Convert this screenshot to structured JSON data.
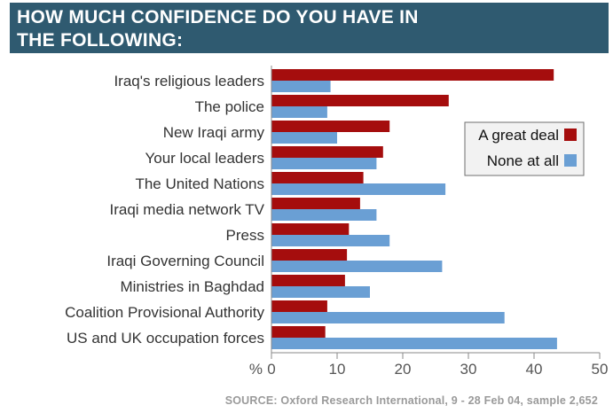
{
  "header": {
    "title": "HOW MUCH CONFIDENCE DO YOU HAVE IN\nTHE FOLLOWING:"
  },
  "source": "SOURCE: Oxford Research International, 9 - 28 Feb 04, sample 2,652",
  "colors": {
    "header_bg": "#2f5a70",
    "great_deal": "#a50d0d",
    "none_at_all": "#6a9fd4",
    "axis": "#8a8a8a"
  },
  "chart_data": {
    "type": "bar",
    "orientation": "horizontal",
    "categories": [
      "Iraq's religious leaders",
      "The police",
      "New Iraqi army",
      "Your local leaders",
      "The United Nations",
      "Iraqi media network TV",
      "Press",
      "Iraqi Governing Council",
      "Ministries in Baghdad",
      "Coalition Provisional Authority",
      "US and UK occupation forces"
    ],
    "series": [
      {
        "name": "A great deal",
        "values": [
          43,
          27,
          18,
          17,
          14,
          13.5,
          11.8,
          11.5,
          11.2,
          8.5,
          8.2
        ]
      },
      {
        "name": "None at all",
        "values": [
          9,
          8.5,
          10,
          16,
          26.5,
          16,
          18,
          26,
          15,
          35.5,
          43.5
        ]
      }
    ],
    "axis_unit_label": "%",
    "xticks": [
      0,
      10,
      20,
      30,
      40,
      50
    ],
    "xlim": [
      0,
      50
    ],
    "grid": false,
    "legend": "top-right"
  }
}
